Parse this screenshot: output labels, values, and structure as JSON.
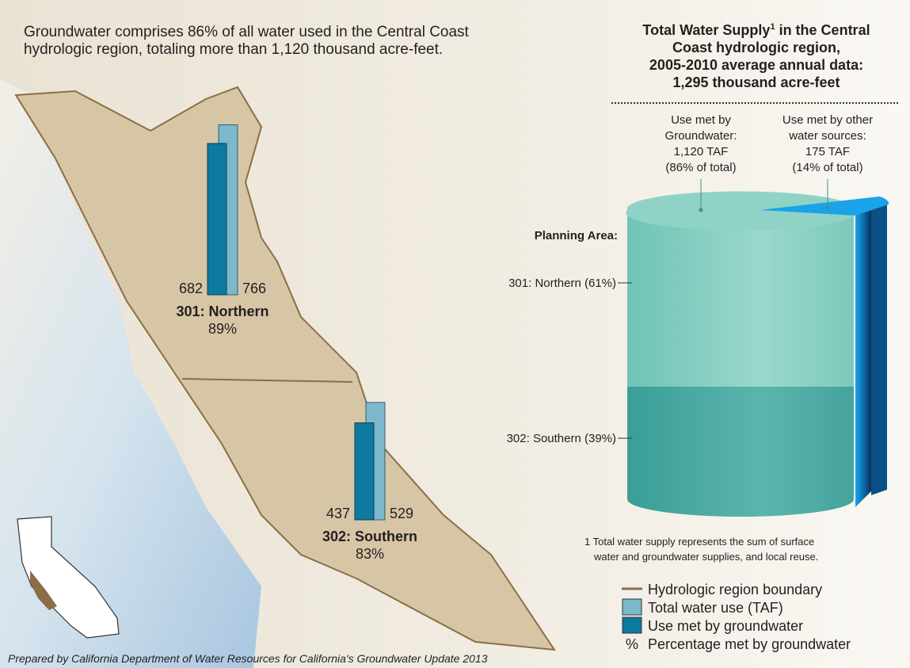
{
  "header": [
    "Groundwater comprises 86% of all water used in the Central Coast",
    "hydrologic region, totaling more than 1,120 thousand acre-feet."
  ],
  "title": {
    "first": "Total Water Supply",
    "footnote_mark": "1",
    "lines": [
      " in the Central",
      "Coast hydrologic region,",
      "2005-2010 average annual data:",
      "1,295 thousand acre-feet"
    ]
  },
  "map_bars": [
    {
      "name": "301: Northern",
      "groundwater": 682,
      "total": 766,
      "percent": "89%"
    },
    {
      "name": "302: Southern",
      "groundwater": 437,
      "total": 529,
      "percent": "83%"
    }
  ],
  "cylinder": {
    "groundwater_label": [
      "Use met by",
      "Groundwater:",
      "1,120 TAF",
      "(86% of total)"
    ],
    "other_label": [
      "Use met by other",
      "water sources:",
      "175 TAF",
      "(14% of total)"
    ],
    "planning_area": "Planning Area:",
    "areas": [
      "301: Northern (61%)",
      "302: Southern (39%)"
    ]
  },
  "footnote": [
    "1 Total water supply represents the sum of surface",
    "water and groundwater supplies, and local reuse."
  ],
  "legend": [
    "Hydrologic region boundary",
    "Total water use (TAF)",
    "Use met by groundwater",
    "%",
    "Percentage met by groundwater"
  ],
  "credit": "Prepared by California Department of Water Resources for California's Groundwater Update 2013"
}
